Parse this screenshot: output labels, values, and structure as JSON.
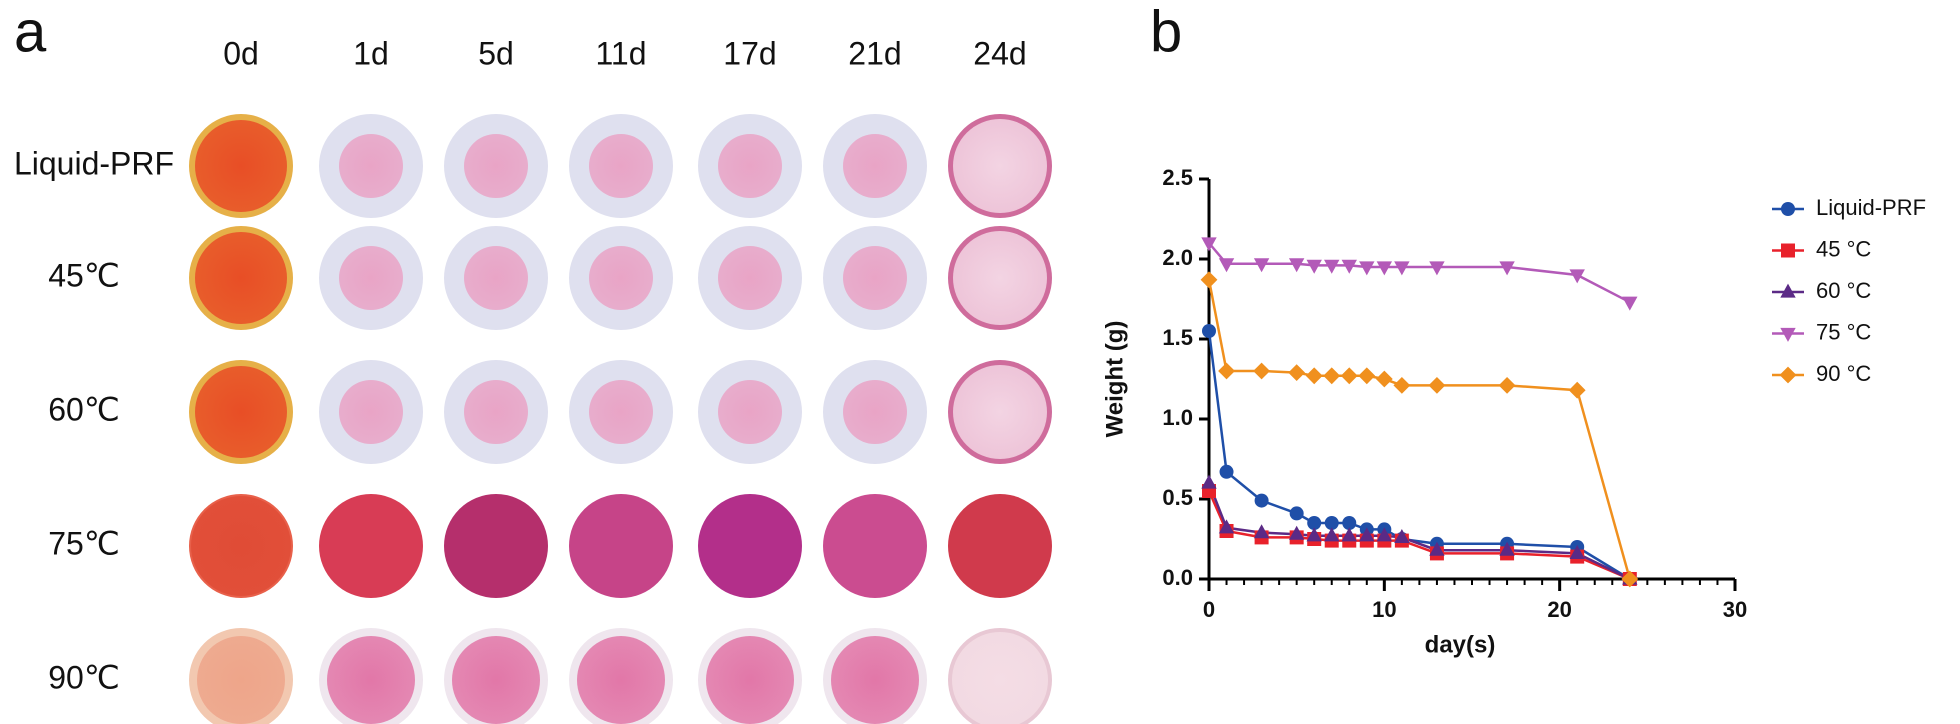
{
  "panel_a": {
    "label": "a",
    "columns": [
      "0d",
      "1d",
      "5d",
      "11d",
      "17d",
      "21d",
      "24d"
    ],
    "rows": [
      "Liquid-PRF",
      "45℃",
      "60℃",
      "75℃",
      "90℃"
    ]
  },
  "chart_data": {
    "type": "line",
    "panel_label": "b",
    "x_label": "day(s)",
    "y_label": "Weight (g)",
    "x": [
      0,
      1,
      3,
      5,
      6,
      7,
      8,
      9,
      10,
      11,
      13,
      17,
      21,
      24
    ],
    "series": [
      {
        "name": "Liquid-PRF",
        "color": "#1f4fa8",
        "marker": "circle",
        "values": [
          1.55,
          0.67,
          0.49,
          0.41,
          0.35,
          0.35,
          0.35,
          0.31,
          0.31,
          0.25,
          0.22,
          0.22,
          0.2,
          0
        ]
      },
      {
        "name": "45 °C",
        "color": "#e8212b",
        "marker": "square",
        "values": [
          0.55,
          0.3,
          0.26,
          0.26,
          0.25,
          0.24,
          0.24,
          0.24,
          0.24,
          0.24,
          0.16,
          0.16,
          0.14,
          0
        ]
      },
      {
        "name": "60 °C",
        "color": "#5b2a86",
        "marker": "triangle-up",
        "values": [
          0.6,
          0.32,
          0.29,
          0.28,
          0.27,
          0.27,
          0.27,
          0.27,
          0.27,
          0.26,
          0.18,
          0.18,
          0.16,
          0
        ]
      },
      {
        "name": "75 °C",
        "color": "#b35ab8",
        "marker": "triangle-down",
        "values": [
          2.1,
          1.97,
          1.97,
          1.97,
          1.96,
          1.96,
          1.96,
          1.95,
          1.95,
          1.95,
          1.95,
          1.95,
          1.9,
          1.73
        ]
      },
      {
        "name": "90 °C",
        "color": "#f0901e",
        "marker": "diamond",
        "values": [
          1.87,
          1.3,
          1.3,
          1.29,
          1.27,
          1.27,
          1.27,
          1.27,
          1.25,
          1.21,
          1.21,
          1.21,
          1.18,
          0
        ]
      }
    ],
    "xlim": [
      0,
      30
    ],
    "xticks": [
      0,
      10,
      20,
      30
    ],
    "ylim": [
      0,
      2.5
    ],
    "yticks": [
      {
        "value": 0,
        "label": "0.0"
      },
      {
        "value": 0.5,
        "label": "0.5"
      },
      {
        "value": 1,
        "label": "1.0"
      },
      {
        "value": 1.5,
        "label": "1.5"
      },
      {
        "value": 2,
        "label": "2.0"
      },
      {
        "value": 2.5,
        "label": "2.5"
      }
    ],
    "legend": "right",
    "grid": false
  }
}
